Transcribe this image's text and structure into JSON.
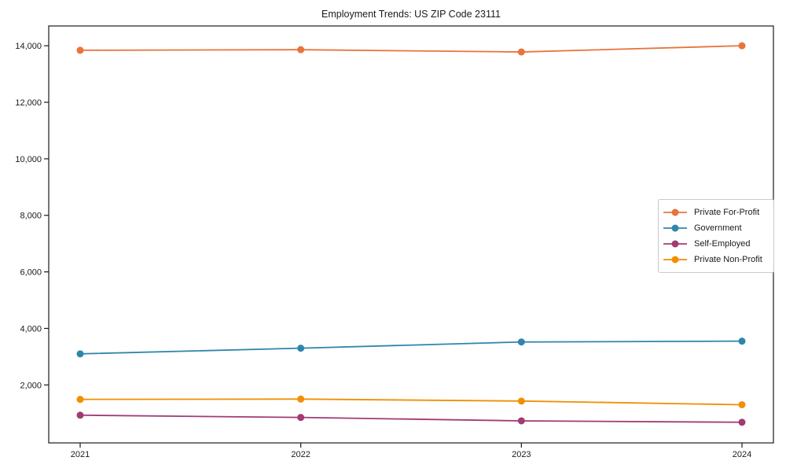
{
  "chart_data": {
    "type": "line",
    "title": "Employment Trends: US ZIP Code 23111",
    "xlabel": "",
    "ylabel": "",
    "categories": [
      "2021",
      "2022",
      "2023",
      "2024"
    ],
    "series": [
      {
        "name": "Private For-Profit",
        "color": "#E8743B",
        "values": [
          13840,
          13860,
          13780,
          14000
        ]
      },
      {
        "name": "Government",
        "color": "#2E86AB",
        "values": [
          3100,
          3300,
          3520,
          3550
        ]
      },
      {
        "name": "Self-Employed",
        "color": "#A23B72",
        "values": [
          930,
          850,
          730,
          680
        ]
      },
      {
        "name": "Private Non-Profit",
        "color": "#F18F01",
        "values": [
          1490,
          1500,
          1430,
          1300
        ]
      }
    ],
    "ylim": [
      -50,
      14700
    ],
    "yticks": [
      {
        "value": 2000,
        "label": "2,000"
      },
      {
        "value": 4000,
        "label": "4,000"
      },
      {
        "value": 6000,
        "label": "6,000"
      },
      {
        "value": 8000,
        "label": "8,000"
      },
      {
        "value": 10000,
        "label": "10,000"
      },
      {
        "value": 12000,
        "label": "12,000"
      },
      {
        "value": 14000,
        "label": "14,000"
      }
    ],
    "grid": false,
    "legend_position": "center right",
    "axis_color": "#1a1a1a",
    "tick_label_color": "#1a1a1a",
    "title_color": "#1a1a1a"
  }
}
